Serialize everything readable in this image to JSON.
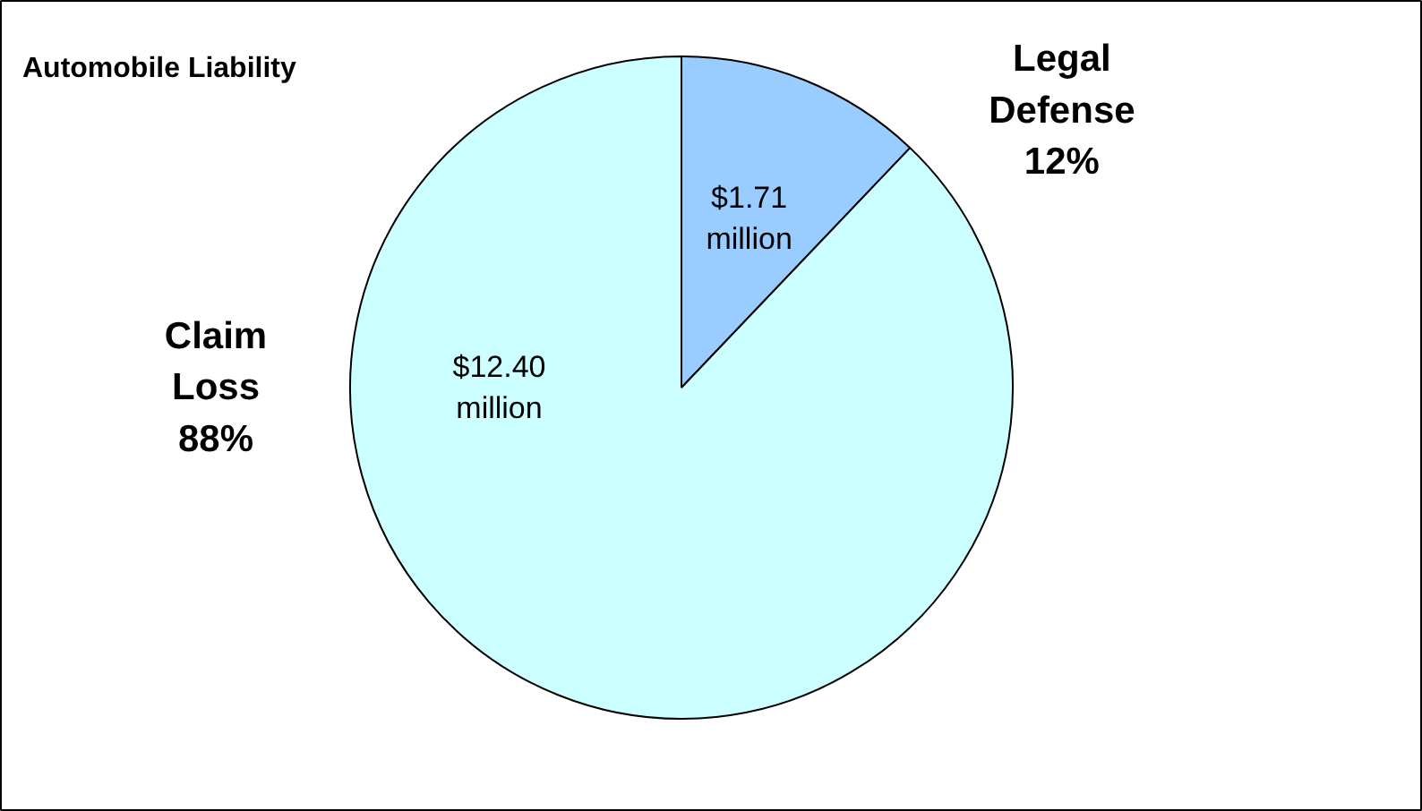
{
  "chart_data": {
    "type": "pie",
    "title": "Automobile Liability",
    "categories": [
      "Legal Defense",
      "Claim Loss"
    ],
    "values": [
      1710000,
      12400000
    ],
    "colors": [
      "#99ccff",
      "#ccffff"
    ],
    "value_labels": [
      "$1.71\nmillion",
      "$12.40\nmillion"
    ],
    "annotations": [
      {
        "text": "88%",
        "x": "Claim Loss"
      },
      {
        "text": "12%",
        "x": "Legal Defense"
      }
    ]
  }
}
